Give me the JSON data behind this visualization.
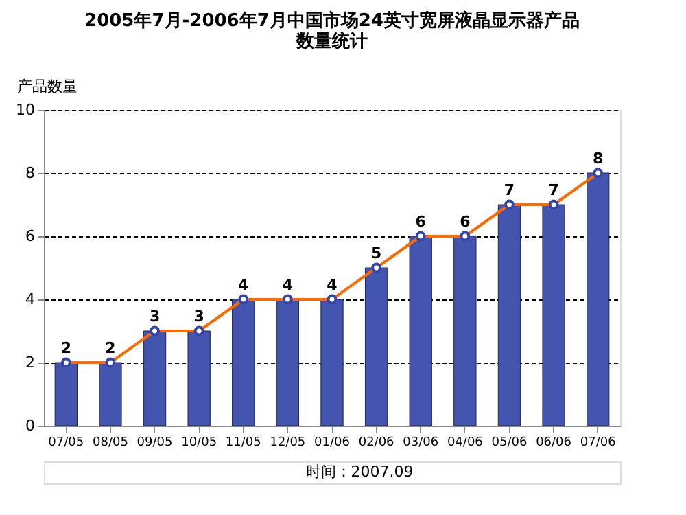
{
  "chart_data": {
    "type": "bar",
    "title": "2005年7月-2006年7月中国市场24英寸宽屏液晶显示器产品数量统计",
    "ylabel": "产品数量",
    "categories": [
      "07/05",
      "08/05",
      "09/05",
      "10/05",
      "11/05",
      "12/05",
      "01/06",
      "02/06",
      "03/06",
      "04/06",
      "05/06",
      "06/06",
      "07/06"
    ],
    "series": [
      {
        "color": "#4455b0",
        "values": [
          2,
          2,
          3,
          3,
          4,
          4,
          4,
          5,
          6,
          6,
          7,
          7,
          8
        ]
      },
      {
        "type": "line",
        "color": "#ff6a00",
        "marker": "circle",
        "values": [
          2,
          2,
          3,
          3,
          4,
          4,
          4,
          5,
          6,
          6,
          7,
          7,
          8
        ],
        "value_labels": [
          "2",
          "2",
          "3",
          "3",
          "4",
          "4",
          "4",
          "5",
          "6",
          "6",
          "7",
          "7",
          "8"
        ]
      }
    ],
    "ylim": [
      0,
      10
    ],
    "yticks": [
      0,
      2,
      4,
      6,
      8,
      10
    ],
    "grid": "y",
    "annotations": [
      "时间：2007.09"
    ]
  }
}
